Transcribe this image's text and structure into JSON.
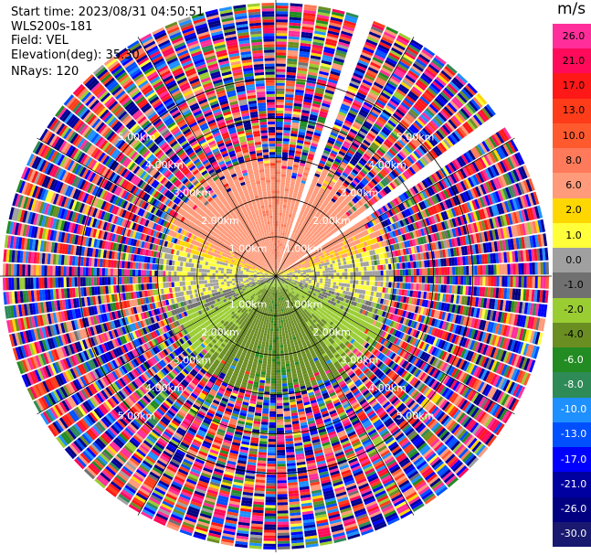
{
  "info": {
    "start_time": "Start time: 2023/08/31 04:50:51",
    "instrument": "WLS200s-181",
    "field": "Field: VEL",
    "elevation": "Elevation(deg): 35.30",
    "nrays": "NRays: 120"
  },
  "colorbar": {
    "unit": "m/s",
    "ticks": [
      "26.0",
      "21.0",
      "17.0",
      "13.0",
      "10.0",
      "8.0",
      "6.0",
      "2.0",
      "1.0",
      "0.0",
      "-1.0",
      "-2.0",
      "-4.0",
      "-6.0",
      "-8.0",
      "-10.0",
      "-13.0",
      "-17.0",
      "-21.0",
      "-26.0",
      "-30.0"
    ],
    "colors": [
      "#ff2e9a",
      "#ff0a5a",
      "#ff1818",
      "#ff3c1a",
      "#ff5a2e",
      "#ff7a5a",
      "#ff9a7a",
      "#ffd700",
      "#ffff3a",
      "#a0a0a0",
      "#707070",
      "#9acd32",
      "#6b8e23",
      "#228b22",
      "#2e8b57",
      "#1e90ff",
      "#0050ff",
      "#0000ff",
      "#0000a0",
      "#000080",
      "#191970"
    ]
  },
  "chart_data": {
    "type": "ppi",
    "field": "VEL",
    "units": "m/s",
    "range_rings_km": [
      1.0,
      2.0,
      3.0,
      4.0,
      5.0
    ],
    "range_labels": [
      "1.00km",
      "2.00km",
      "3.00km",
      "4.00km",
      "5.00km"
    ],
    "max_range_km": 7.0,
    "nrays": 120,
    "color_range": [
      -30,
      26
    ],
    "pattern": {
      "positive_sector": "north (yellow/orange, approaching ~2 to 6 m/s)",
      "negative_sector": "south (green, receding ~-2 to -6 m/s)",
      "zero_band": "east-west (gray, ~0 m/s)",
      "clean_radius_km": 3.0,
      "noise_beyond_km": 3.0,
      "missing_rays_azimuth_deg": [
        18,
        54
      ]
    }
  }
}
